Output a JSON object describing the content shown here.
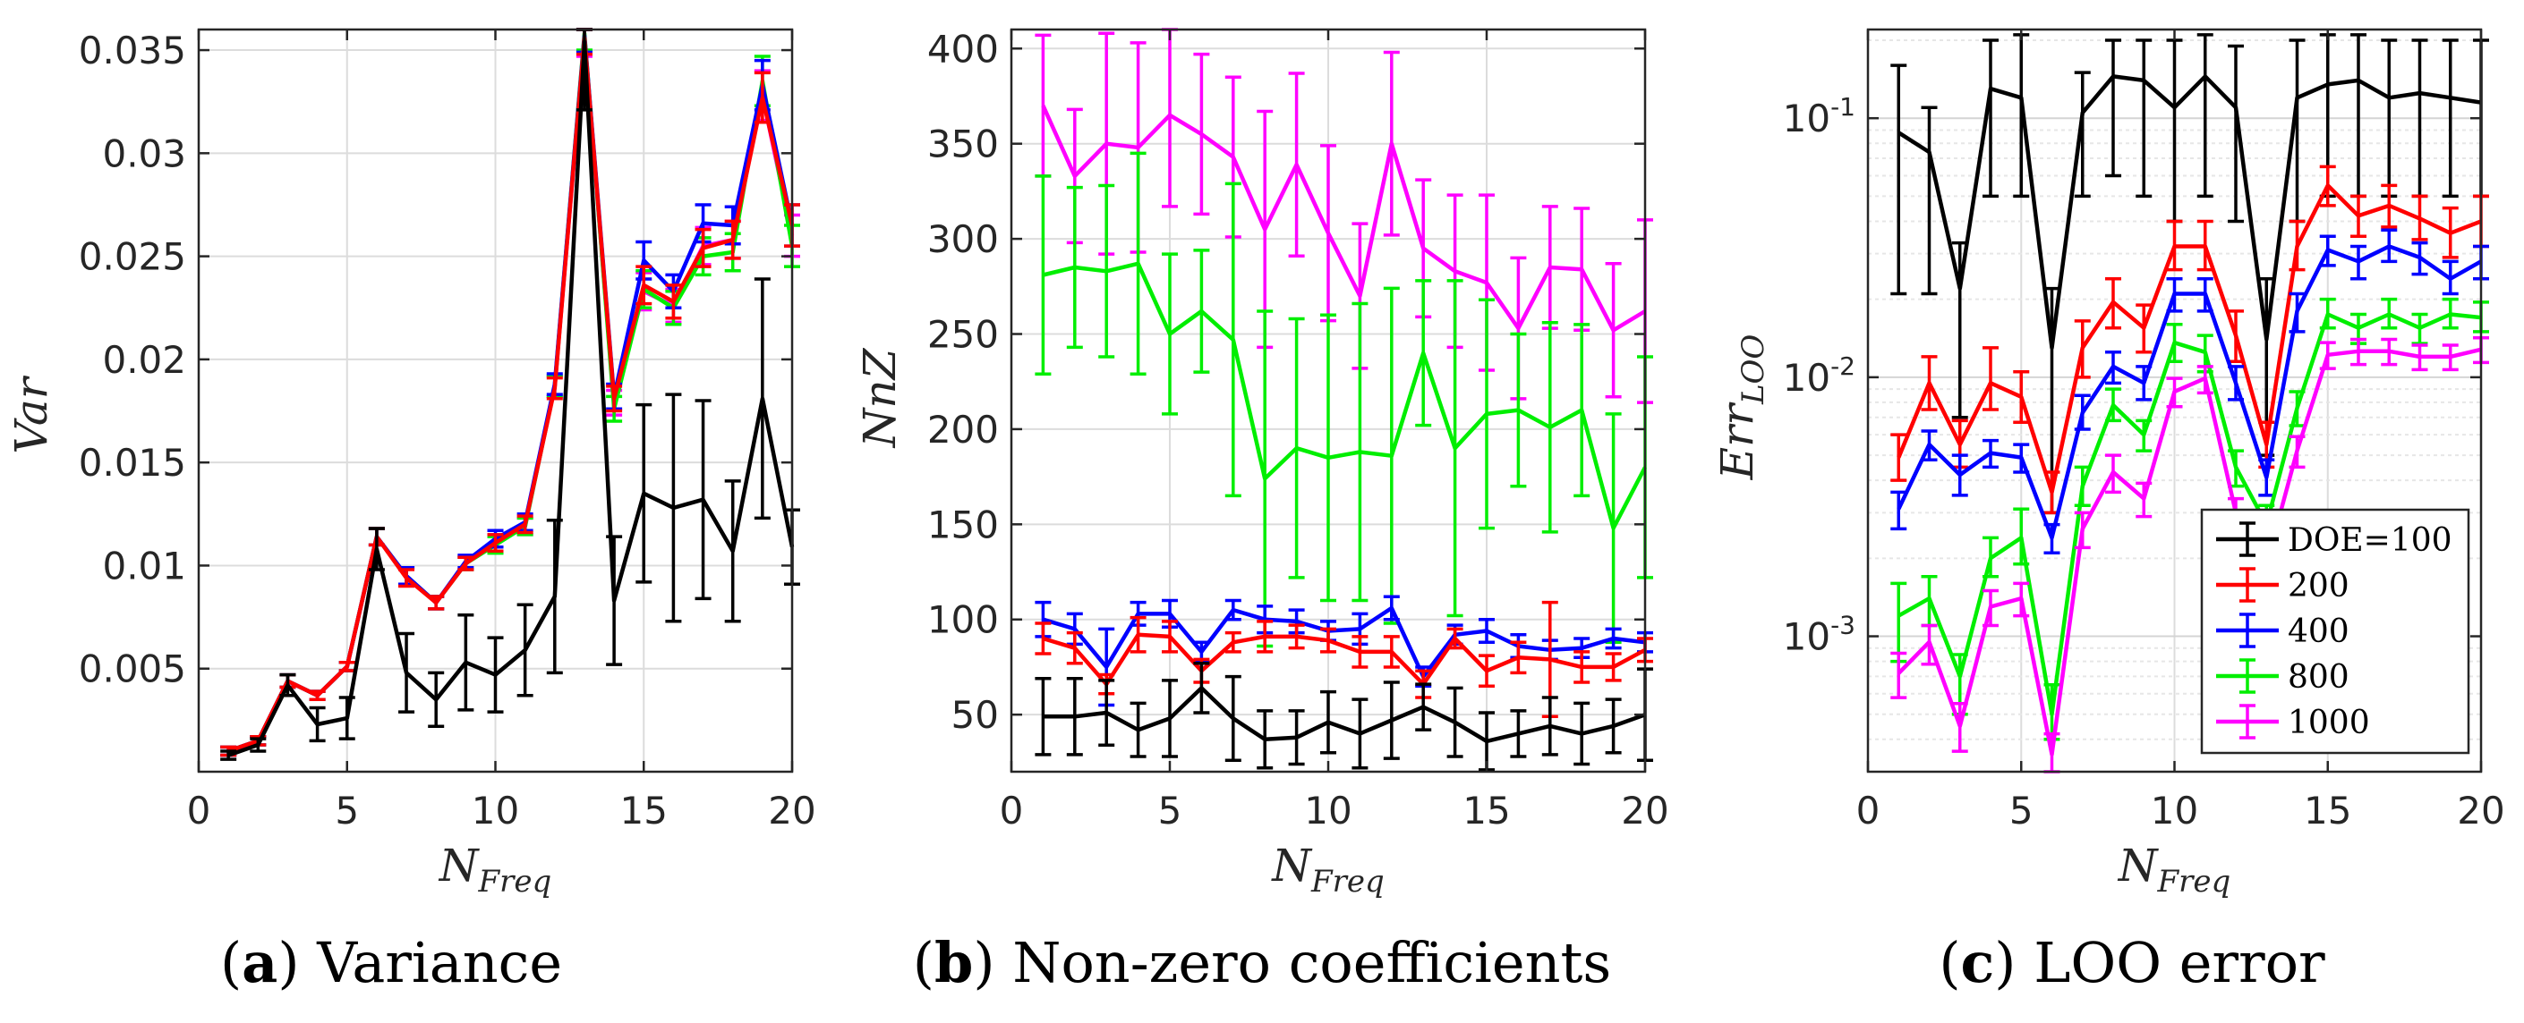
{
  "colors": {
    "DOE=100": "#000000",
    "200": "#ff0000",
    "400": "#0000ff",
    "800": "#00ee00",
    "1000": "#ff00ff"
  },
  "chart_data": [
    {
      "type": "line",
      "panel_label": "a",
      "caption": "Variance",
      "ylabel_main": "Var",
      "xlabel_main": "N",
      "xlabel_sub": "Freq",
      "yscale": "linear",
      "xlim": [
        0,
        20
      ],
      "ylim": [
        0,
        0.036
      ],
      "xticks": [
        0,
        5,
        10,
        15,
        20
      ],
      "xtick_labels": [
        "0",
        "5",
        "10",
        "15",
        "20"
      ],
      "yticks": [
        0.005,
        0.01,
        0.015,
        0.02,
        0.025,
        0.03,
        0.035
      ],
      "ytick_labels": [
        "0.005",
        "0.01",
        "0.015",
        "0.02",
        "0.025",
        "0.03",
        "0.035"
      ],
      "x": [
        1,
        2,
        3,
        4,
        5,
        6,
        7,
        8,
        9,
        10,
        11,
        12,
        13,
        14,
        15,
        16,
        17,
        18,
        19,
        20
      ],
      "series": [
        {
          "name": "1000",
          "values": [
            0.001,
            0.0015,
            0.0044,
            0.0037,
            0.0051,
            0.0114,
            0.0095,
            0.0082,
            0.0101,
            0.0111,
            0.0119,
            0.0187,
            0.0355,
            0.0179,
            0.0233,
            0.0226,
            0.0255,
            0.0258,
            0.0328,
            0.026
          ],
          "errors": [
            0.0002,
            0.0002,
            0.0003,
            0.0002,
            0.0002,
            0.0004,
            0.0004,
            0.0003,
            0.0003,
            0.0004,
            0.0004,
            0.0005,
            0.0008,
            0.0006,
            0.0009,
            0.0008,
            0.0009,
            0.0009,
            0.0012,
            0.001
          ]
        },
        {
          "name": "800",
          "values": [
            0.001,
            0.0015,
            0.0044,
            0.0037,
            0.0051,
            0.0114,
            0.0095,
            0.0082,
            0.0101,
            0.011,
            0.0119,
            0.0187,
            0.0358,
            0.0176,
            0.0234,
            0.0225,
            0.025,
            0.0252,
            0.0335,
            0.0255
          ],
          "errors": [
            0.0002,
            0.0002,
            0.0003,
            0.0002,
            0.0002,
            0.0004,
            0.0004,
            0.0003,
            0.0003,
            0.0004,
            0.0004,
            0.0005,
            0.0008,
            0.0006,
            0.0009,
            0.0008,
            0.0009,
            0.0009,
            0.0012,
            0.001
          ]
        },
        {
          "name": "400",
          "values": [
            0.001,
            0.0015,
            0.0044,
            0.0037,
            0.0051,
            0.0114,
            0.0095,
            0.0082,
            0.0102,
            0.0113,
            0.0121,
            0.0188,
            0.0357,
            0.0182,
            0.0248,
            0.0233,
            0.0266,
            0.0265,
            0.0333,
            0.0265
          ],
          "errors": [
            0.0002,
            0.0002,
            0.0003,
            0.0002,
            0.0002,
            0.0004,
            0.0004,
            0.0003,
            0.0003,
            0.0004,
            0.0004,
            0.0005,
            0.0008,
            0.0006,
            0.0009,
            0.0008,
            0.0009,
            0.0009,
            0.0012,
            0.001
          ]
        },
        {
          "name": "200",
          "values": [
            0.001,
            0.0015,
            0.0044,
            0.0037,
            0.0051,
            0.0114,
            0.0094,
            0.0082,
            0.0101,
            0.0111,
            0.012,
            0.0186,
            0.0356,
            0.0181,
            0.0236,
            0.0228,
            0.0254,
            0.0258,
            0.0327,
            0.0265
          ],
          "errors": [
            0.0002,
            0.0002,
            0.0003,
            0.0002,
            0.0002,
            0.0004,
            0.0004,
            0.0003,
            0.0003,
            0.0004,
            0.0004,
            0.0005,
            0.0008,
            0.0006,
            0.0009,
            0.0008,
            0.0009,
            0.0009,
            0.0012,
            0.001
          ]
        },
        {
          "name": "DOE=100",
          "values": [
            0.0008,
            0.0013,
            0.0042,
            0.0023,
            0.0026,
            0.0108,
            0.0048,
            0.0035,
            0.0053,
            0.0047,
            0.0059,
            0.0085,
            0.0354,
            0.0083,
            0.0135,
            0.0128,
            0.0132,
            0.0107,
            0.0181,
            0.0109
          ],
          "errors": [
            0.0002,
            0.0003,
            0.0005,
            0.0008,
            0.001,
            0.001,
            0.0019,
            0.0013,
            0.0023,
            0.0018,
            0.0022,
            0.0037,
            0.0033,
            0.0031,
            0.0043,
            0.0055,
            0.0048,
            0.0034,
            0.0058,
            0.0018
          ]
        }
      ]
    },
    {
      "type": "line",
      "panel_label": "b",
      "caption": "Non-zero coefficients",
      "ylabel_main": "NnZ",
      "xlabel_main": "N",
      "xlabel_sub": "Freq",
      "yscale": "linear",
      "xlim": [
        0,
        20
      ],
      "ylim": [
        20,
        410
      ],
      "xticks": [
        0,
        5,
        10,
        15,
        20
      ],
      "xtick_labels": [
        "0",
        "5",
        "10",
        "15",
        "20"
      ],
      "yticks": [
        50,
        100,
        150,
        200,
        250,
        300,
        350,
        400
      ],
      "ytick_labels": [
        "50",
        "100",
        "150",
        "200",
        "250",
        "300",
        "350",
        "400"
      ],
      "x": [
        1,
        2,
        3,
        4,
        5,
        6,
        7,
        8,
        9,
        10,
        11,
        12,
        13,
        14,
        15,
        16,
        17,
        18,
        19,
        20
      ],
      "series": [
        {
          "name": "1000",
          "values": [
            370,
            333,
            350,
            348,
            365,
            355,
            343,
            305,
            339,
            303,
            270,
            350,
            295,
            283,
            277,
            253,
            285,
            284,
            252,
            262
          ],
          "errors": [
            37,
            35,
            58,
            55,
            48,
            42,
            42,
            62,
            48,
            46,
            38,
            48,
            36,
            40,
            46,
            37,
            32,
            32,
            35,
            48
          ]
        },
        {
          "name": "800",
          "values": [
            281,
            285,
            283,
            287,
            250,
            262,
            247,
            174,
            190,
            185,
            188,
            186,
            240,
            190,
            208,
            210,
            201,
            210,
            148,
            180
          ],
          "errors": [
            52,
            42,
            45,
            58,
            42,
            32,
            82,
            88,
            68,
            75,
            78,
            88,
            38,
            88,
            60,
            40,
            55,
            45,
            60,
            58
          ]
        },
        {
          "name": "400",
          "values": [
            100,
            95,
            75,
            103,
            103,
            83,
            105,
            100,
            99,
            94,
            95,
            106,
            70,
            92,
            94,
            86,
            84,
            85,
            90,
            88
          ],
          "errors": [
            9,
            8,
            20,
            6,
            7,
            5,
            5,
            7,
            6,
            5,
            8,
            6,
            5,
            5,
            6,
            6,
            5,
            5,
            5,
            5
          ]
        },
        {
          "name": "200",
          "values": [
            90,
            85,
            66,
            92,
            91,
            73,
            88,
            91,
            91,
            89,
            83,
            83,
            66,
            90,
            73,
            80,
            79,
            75,
            75,
            84
          ],
          "errors": [
            8,
            8,
            5,
            9,
            8,
            6,
            5,
            8,
            6,
            6,
            8,
            8,
            7,
            5,
            8,
            8,
            30,
            8,
            7,
            6
          ]
        },
        {
          "name": "DOE=100",
          "values": [
            49,
            49,
            51,
            42,
            48,
            64,
            48,
            37,
            38,
            46,
            40,
            47,
            54,
            46,
            36,
            40,
            44,
            40,
            44,
            50
          ],
          "errors": [
            20,
            20,
            17,
            14,
            20,
            13,
            22,
            15,
            14,
            16,
            18,
            20,
            12,
            18,
            15,
            12,
            15,
            16,
            14,
            24
          ]
        }
      ]
    },
    {
      "type": "line",
      "panel_label": "c",
      "caption": "LOO error",
      "ylabel_main": "Err",
      "ylabel_sub": "LOO",
      "xlabel_main": "N",
      "xlabel_sub": "Freq",
      "yscale": "log",
      "xlim": [
        0,
        20
      ],
      "ylim": [
        0.0003,
        0.22
      ],
      "xticks": [
        0,
        5,
        10,
        15,
        20
      ],
      "xtick_labels": [
        "0",
        "5",
        "10",
        "15",
        "20"
      ],
      "yticks": [
        0.001,
        0.01,
        0.1
      ],
      "ytick_labels": [
        {
          "base": "10",
          "exp": "-3"
        },
        {
          "base": "10",
          "exp": "-2"
        },
        {
          "base": "10",
          "exp": "-1"
        }
      ],
      "x": [
        1,
        2,
        3,
        4,
        5,
        6,
        7,
        8,
        9,
        10,
        11,
        12,
        13,
        14,
        15,
        16,
        17,
        18,
        19,
        20
      ],
      "legend": {
        "position": "bottom-right",
        "entries": [
          "DOE=100",
          "200",
          "400",
          "800",
          "1000"
        ]
      },
      "series": [
        {
          "name": "DOE=100",
          "values": [
            0.088,
            0.074,
            0.022,
            0.13,
            0.12,
            0.013,
            0.105,
            0.145,
            0.14,
            0.11,
            0.145,
            0.11,
            0.014,
            0.12,
            0.135,
            0.14,
            0.12,
            0.125,
            0.12,
            0.115
          ],
          "lower": [
            0.021,
            0.021,
            0.007,
            0.05,
            0.05,
            0.003,
            0.05,
            0.06,
            0.05,
            0.04,
            0.05,
            0.04,
            0.005,
            0.04,
            0.05,
            0.05,
            0.05,
            0.05,
            0.05,
            0.05
          ],
          "upper": [
            0.16,
            0.11,
            0.033,
            0.2,
            0.21,
            0.022,
            0.15,
            0.2,
            0.2,
            0.2,
            0.21,
            0.19,
            0.024,
            0.2,
            0.21,
            0.21,
            0.2,
            0.2,
            0.2,
            0.2
          ]
        },
        {
          "name": "200",
          "values": [
            0.0049,
            0.0095,
            0.0055,
            0.0095,
            0.0084,
            0.0036,
            0.013,
            0.0195,
            0.0155,
            0.032,
            0.032,
            0.0145,
            0.0055,
            0.032,
            0.055,
            0.042,
            0.046,
            0.041,
            0.036,
            0.04
          ],
          "lower": [
            0.004,
            0.0075,
            0.0045,
            0.0075,
            0.0067,
            0.003,
            0.01,
            0.0155,
            0.0125,
            0.026,
            0.026,
            0.0115,
            0.0045,
            0.026,
            0.046,
            0.035,
            0.038,
            0.034,
            0.029,
            0.032
          ],
          "upper": [
            0.006,
            0.012,
            0.0068,
            0.013,
            0.0105,
            0.0043,
            0.0165,
            0.024,
            0.019,
            0.04,
            0.04,
            0.018,
            0.0067,
            0.04,
            0.065,
            0.05,
            0.055,
            0.05,
            0.045,
            0.05
          ]
        },
        {
          "name": "400",
          "values": [
            0.0031,
            0.0055,
            0.0042,
            0.0051,
            0.0049,
            0.0024,
            0.0073,
            0.011,
            0.0095,
            0.021,
            0.021,
            0.0095,
            0.0041,
            0.018,
            0.031,
            0.028,
            0.032,
            0.029,
            0.024,
            0.028
          ],
          "lower": [
            0.0026,
            0.0048,
            0.0035,
            0.0045,
            0.0043,
            0.0021,
            0.0063,
            0.0095,
            0.0082,
            0.018,
            0.018,
            0.0082,
            0.0035,
            0.015,
            0.027,
            0.024,
            0.028,
            0.025,
            0.021,
            0.024
          ],
          "upper": [
            0.0036,
            0.0062,
            0.005,
            0.0057,
            0.0055,
            0.0027,
            0.0085,
            0.0125,
            0.011,
            0.024,
            0.024,
            0.011,
            0.0048,
            0.021,
            0.035,
            0.032,
            0.037,
            0.033,
            0.028,
            0.032
          ]
        },
        {
          "name": "800",
          "values": [
            0.0012,
            0.0014,
            0.0007,
            0.002,
            0.0024,
            0.0005,
            0.0038,
            0.0078,
            0.006,
            0.0136,
            0.0125,
            0.0045,
            0.0027,
            0.0076,
            0.0175,
            0.0155,
            0.0175,
            0.0155,
            0.0175,
            0.017
          ],
          "lower": [
            0.0008,
            0.0011,
            0.0005,
            0.0017,
            0.0019,
            0.0004,
            0.0032,
            0.0068,
            0.0052,
            0.0115,
            0.0105,
            0.0038,
            0.0022,
            0.0065,
            0.0155,
            0.0135,
            0.0155,
            0.0135,
            0.0155,
            0.015
          ],
          "upper": [
            0.0016,
            0.0017,
            0.00085,
            0.0024,
            0.0031,
            0.00065,
            0.0045,
            0.009,
            0.0068,
            0.016,
            0.0145,
            0.0052,
            0.0032,
            0.0088,
            0.02,
            0.0175,
            0.02,
            0.0175,
            0.02,
            0.0195
          ]
        },
        {
          "name": "1000",
          "values": [
            0.00072,
            0.00095,
            0.00045,
            0.0013,
            0.0014,
            0.00035,
            0.0026,
            0.0043,
            0.0034,
            0.0088,
            0.0099,
            0.003,
            0.0019,
            0.0052,
            0.0122,
            0.0126,
            0.0126,
            0.012,
            0.012,
            0.0128
          ],
          "lower": [
            0.00058,
            0.00078,
            0.00036,
            0.0011,
            0.0012,
            0.00028,
            0.0022,
            0.0036,
            0.0029,
            0.0077,
            0.0087,
            0.0026,
            0.0016,
            0.0045,
            0.0108,
            0.0112,
            0.0112,
            0.0107,
            0.0107,
            0.0114
          ],
          "upper": [
            0.00086,
            0.0011,
            0.00055,
            0.0015,
            0.0016,
            0.00042,
            0.003,
            0.005,
            0.0039,
            0.0099,
            0.011,
            0.0034,
            0.0022,
            0.0059,
            0.0136,
            0.014,
            0.014,
            0.0133,
            0.0133,
            0.0142
          ]
        }
      ]
    }
  ]
}
